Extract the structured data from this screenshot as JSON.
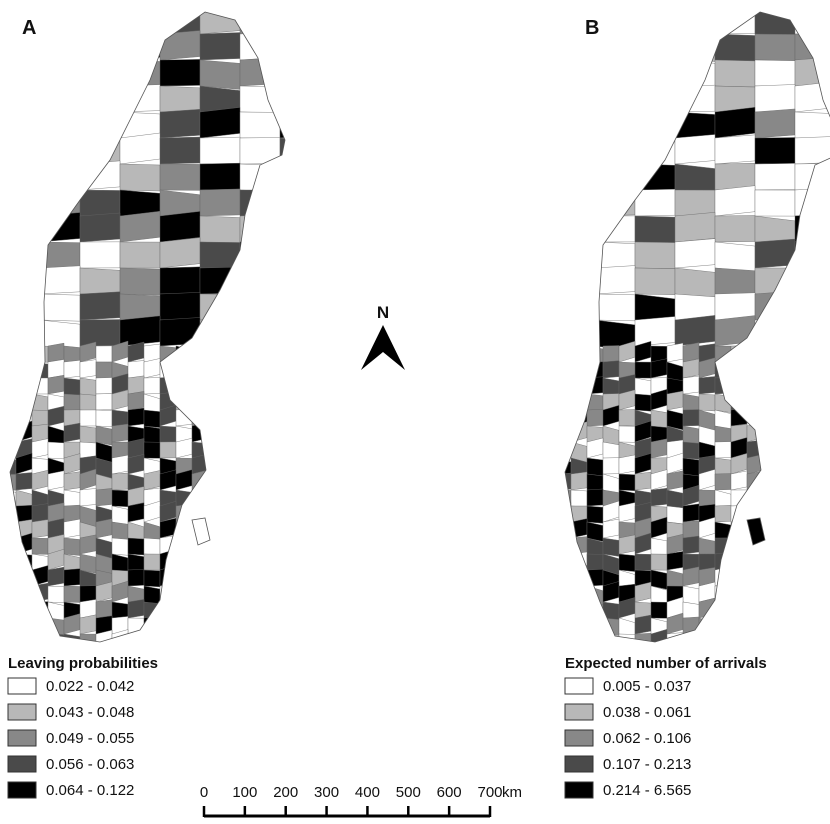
{
  "panels": [
    {
      "label": "A",
      "legend": {
        "title": "Leaving probabilities",
        "classes": [
          {
            "label": "0.022 - 0.042",
            "color": "#ffffff"
          },
          {
            "label": "0.043 - 0.048",
            "color": "#b8b8b8"
          },
          {
            "label": "0.049 - 0.055",
            "color": "#888888"
          },
          {
            "label": "0.056 - 0.063",
            "color": "#4a4a4a"
          },
          {
            "label": "0.064 - 0.122",
            "color": "#000000"
          }
        ]
      }
    },
    {
      "label": "B",
      "legend": {
        "title": "Expected number of arrivals",
        "classes": [
          {
            "label": "0.005 - 0.037",
            "color": "#ffffff"
          },
          {
            "label": "0.038 - 0.061",
            "color": "#b8b8b8"
          },
          {
            "label": "0.062 - 0.106",
            "color": "#888888"
          },
          {
            "label": "0.107 - 0.213",
            "color": "#4a4a4a"
          },
          {
            "label": "0.214 - 6.565",
            "color": "#000000"
          }
        ]
      }
    }
  ],
  "north_arrow": {
    "label": "N"
  },
  "scale_bar": {
    "ticks": [
      0,
      100,
      200,
      300,
      400,
      500,
      600,
      700
    ],
    "unit": "km"
  }
}
